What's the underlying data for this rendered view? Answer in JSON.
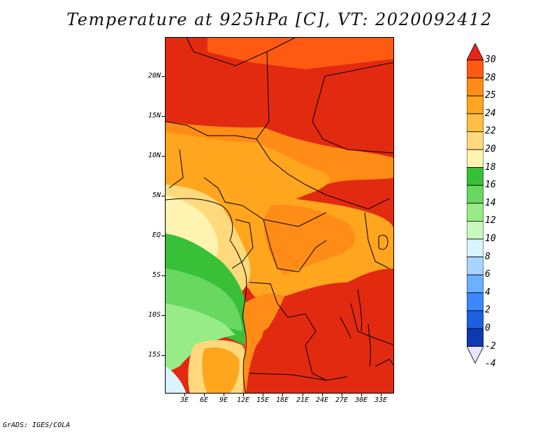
{
  "title": "Temperature at 925hPa [C], VT: 2020092412",
  "credit": "GrADS: IGES/COLA",
  "y_ticks": [
    "20N",
    "15N",
    "10N",
    "5N",
    "EQ",
    "5S",
    "10S",
    "15S"
  ],
  "x_ticks": [
    "3E",
    "6E",
    "9E",
    "12E",
    "15E",
    "18E",
    "21E",
    "24E",
    "27E",
    "30E",
    "33E"
  ],
  "colorbar": {
    "labels": [
      "30",
      "28",
      "25",
      "24",
      "22",
      "20",
      "18",
      "16",
      "14",
      "12",
      "10",
      "8",
      "6",
      "4",
      "2",
      "0",
      "-2",
      "-4"
    ],
    "colors": [
      "#e8241a",
      "#ff5a12",
      "#ff8c16",
      "#ffa51e",
      "#ffbf44",
      "#ffd97c",
      "#fff3b0",
      "#38c038",
      "#68d860",
      "#98ec88",
      "#c8f8c0",
      "#d8f4ff",
      "#a8d4ff",
      "#6cb0ff",
      "#3c88ff",
      "#1c60e0",
      "#1038b0",
      "#0a1a80"
    ]
  }
}
